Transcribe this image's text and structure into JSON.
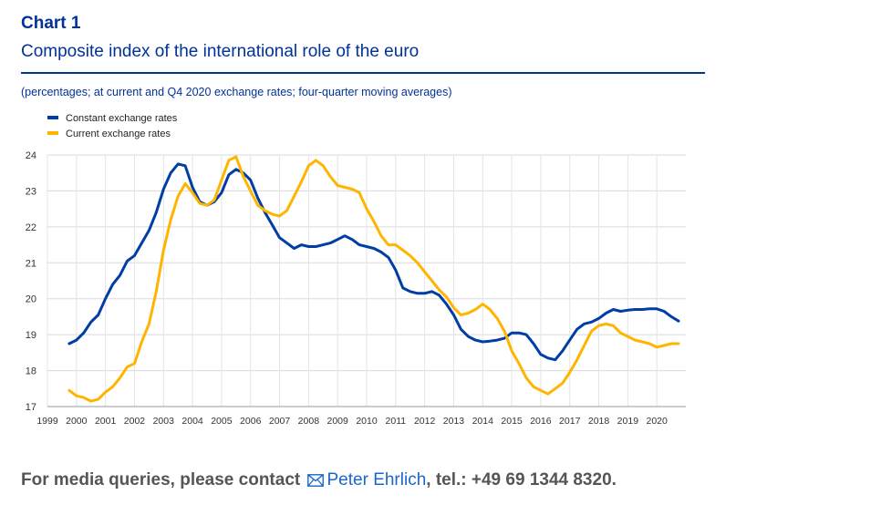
{
  "header": {
    "label": "Chart 1",
    "title": "Composite index of the international role of the euro",
    "subtitle": "(percentages; at current and Q4 2020 exchange rates; four-quarter moving averages)"
  },
  "footer": {
    "prefix": "For media queries, please contact",
    "contact_name": "Peter Ehrlich",
    "suffix": ", tel.: +49 69 1344 8320.",
    "icon": "mail-icon"
  },
  "colors": {
    "constant": "#003da5",
    "current": "#ffb400",
    "header": "#003299"
  },
  "chart_data": {
    "type": "line",
    "title": "Composite index of the international role of the euro",
    "xlabel": "",
    "ylabel": "",
    "xlim": [
      1999,
      2021
    ],
    "ylim": [
      17,
      24
    ],
    "yticks": [
      17,
      18,
      19,
      20,
      21,
      22,
      23,
      24
    ],
    "xticks": [
      "1999",
      "2000",
      "2001",
      "2002",
      "2003",
      "2004",
      "2005",
      "2006",
      "2007",
      "2008",
      "2009",
      "2010",
      "2011",
      "2012",
      "2013",
      "2014",
      "2015",
      "2016",
      "2017",
      "2018",
      "2019",
      "2020"
    ],
    "grid": true,
    "legend_position": "top-left",
    "series": [
      {
        "name": "Constant exchange rates",
        "color": "#003da5",
        "x": [
          1999.75,
          2000,
          2000.25,
          2000.5,
          2000.75,
          2001,
          2001.25,
          2001.5,
          2001.75,
          2002,
          2002.25,
          2002.5,
          2002.75,
          2003,
          2003.25,
          2003.5,
          2003.75,
          2004,
          2004.25,
          2004.5,
          2004.75,
          2005,
          2005.25,
          2005.5,
          2005.75,
          2006,
          2006.25,
          2006.5,
          2006.75,
          2007,
          2007.25,
          2007.5,
          2007.75,
          2008,
          2008.25,
          2008.5,
          2008.75,
          2009,
          2009.25,
          2009.5,
          2009.75,
          2010,
          2010.25,
          2010.5,
          2010.75,
          2011,
          2011.25,
          2011.5,
          2011.75,
          2012,
          2012.25,
          2012.5,
          2012.75,
          2013,
          2013.25,
          2013.5,
          2013.75,
          2014,
          2014.25,
          2014.5,
          2014.75,
          2015,
          2015.25,
          2015.5,
          2015.75,
          2016,
          2016.25,
          2016.5,
          2016.75,
          2017,
          2017.25,
          2017.5,
          2017.75,
          2018,
          2018.25,
          2018.5,
          2018.75,
          2019,
          2019.25,
          2019.5,
          2019.75,
          2020,
          2020.25,
          2020.5,
          2020.75
        ],
        "values": [
          18.75,
          18.85,
          19.05,
          19.35,
          19.55,
          20.0,
          20.4,
          20.65,
          21.05,
          21.2,
          21.55,
          21.9,
          22.4,
          23.05,
          23.5,
          23.75,
          23.7,
          23.1,
          22.7,
          22.6,
          22.7,
          22.95,
          23.45,
          23.6,
          23.5,
          23.3,
          22.8,
          22.4,
          22.05,
          21.7,
          21.55,
          21.4,
          21.5,
          21.45,
          21.45,
          21.5,
          21.55,
          21.65,
          21.75,
          21.65,
          21.5,
          21.45,
          21.4,
          21.3,
          21.15,
          20.8,
          20.3,
          20.2,
          20.15,
          20.15,
          20.2,
          20.1,
          19.85,
          19.55,
          19.15,
          18.95,
          18.85,
          18.8,
          18.82,
          18.85,
          18.9,
          19.05,
          19.05,
          19.0,
          18.75,
          18.45,
          18.35,
          18.3,
          18.55,
          18.85,
          19.15,
          19.3,
          19.35,
          19.45,
          19.6,
          19.7,
          19.65,
          19.68,
          19.7,
          19.7,
          19.72,
          19.72,
          19.65,
          19.5,
          19.38
        ]
      },
      {
        "name": "Current exchange rates",
        "color": "#ffb400",
        "x": [
          1999.75,
          2000,
          2000.25,
          2000.5,
          2000.75,
          2001,
          2001.25,
          2001.5,
          2001.75,
          2002,
          2002.25,
          2002.5,
          2002.75,
          2003,
          2003.25,
          2003.5,
          2003.75,
          2004,
          2004.25,
          2004.5,
          2004.75,
          2005,
          2005.25,
          2005.5,
          2005.75,
          2006,
          2006.25,
          2006.5,
          2006.75,
          2007,
          2007.25,
          2007.5,
          2007.75,
          2008,
          2008.25,
          2008.5,
          2008.75,
          2009,
          2009.25,
          2009.5,
          2009.75,
          2010,
          2010.25,
          2010.5,
          2010.75,
          2011,
          2011.25,
          2011.5,
          2011.75,
          2012,
          2012.25,
          2012.5,
          2012.75,
          2013,
          2013.25,
          2013.5,
          2013.75,
          2014,
          2014.25,
          2014.5,
          2014.75,
          2015,
          2015.25,
          2015.5,
          2015.75,
          2016,
          2016.25,
          2016.5,
          2016.75,
          2017,
          2017.25,
          2017.5,
          2017.75,
          2018,
          2018.25,
          2018.5,
          2018.75,
          2019,
          2019.25,
          2019.5,
          2019.75,
          2020,
          2020.25,
          2020.5,
          2020.75
        ],
        "values": [
          17.45,
          17.3,
          17.25,
          17.15,
          17.2,
          17.4,
          17.55,
          17.8,
          18.1,
          18.2,
          18.8,
          19.3,
          20.2,
          21.35,
          22.2,
          22.85,
          23.2,
          22.95,
          22.65,
          22.6,
          22.75,
          23.3,
          23.85,
          23.95,
          23.4,
          23.0,
          22.6,
          22.45,
          22.35,
          22.3,
          22.45,
          22.85,
          23.25,
          23.7,
          23.85,
          23.7,
          23.4,
          23.15,
          23.1,
          23.05,
          22.95,
          22.5,
          22.15,
          21.75,
          21.5,
          21.5,
          21.35,
          21.2,
          21.0,
          20.75,
          20.5,
          20.25,
          20.05,
          19.75,
          19.55,
          19.6,
          19.7,
          19.85,
          19.7,
          19.45,
          19.1,
          18.55,
          18.2,
          17.8,
          17.55,
          17.45,
          17.35,
          17.5,
          17.65,
          17.95,
          18.3,
          18.7,
          19.1,
          19.25,
          19.3,
          19.25,
          19.05,
          18.95,
          18.85,
          18.8,
          18.75,
          18.65,
          18.7,
          18.75,
          18.75
        ]
      }
    ]
  }
}
